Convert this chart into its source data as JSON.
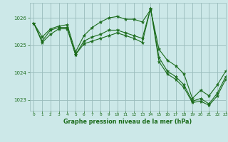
{
  "background_color": "#cce8e8",
  "grid_color": "#99bbbb",
  "line_color": "#1a6b1a",
  "marker_color": "#1a6b1a",
  "xlabel": "Graphe pression niveau de la mer (hPa)",
  "xlabel_color": "#1a6b1a",
  "tick_color": "#1a6b1a",
  "xlim": [
    -0.5,
    23
  ],
  "ylim": [
    1022.6,
    1026.55
  ],
  "yticks": [
    1023,
    1024,
    1025,
    1026
  ],
  "xticks": [
    0,
    1,
    2,
    3,
    4,
    5,
    6,
    7,
    8,
    9,
    10,
    11,
    12,
    13,
    14,
    15,
    16,
    17,
    18,
    19,
    20,
    21,
    22,
    23
  ],
  "series": [
    [
      1025.8,
      1025.3,
      1025.6,
      1025.7,
      1025.75,
      1024.75,
      1025.35,
      1025.65,
      1025.85,
      1026.0,
      1026.05,
      1025.95,
      1025.95,
      1025.85,
      1026.3,
      1024.85,
      1024.45,
      1024.25,
      1023.95,
      1023.05,
      1023.35,
      1023.15,
      1023.55,
      1024.05
    ],
    [
      1025.8,
      1025.15,
      1025.55,
      1025.65,
      1025.65,
      1024.65,
      1025.15,
      1025.3,
      1025.4,
      1025.55,
      1025.55,
      1025.45,
      1025.35,
      1025.25,
      1026.35,
      1024.55,
      1024.05,
      1023.85,
      1023.55,
      1022.95,
      1023.05,
      1022.85,
      1023.25,
      1023.85
    ],
    [
      1025.8,
      1025.1,
      1025.4,
      1025.6,
      1025.6,
      1024.65,
      1025.05,
      1025.15,
      1025.25,
      1025.35,
      1025.45,
      1025.35,
      1025.25,
      1025.1,
      1026.35,
      1024.4,
      1023.95,
      1023.75,
      1023.45,
      1022.9,
      1022.95,
      1022.8,
      1023.15,
      1023.75
    ]
  ]
}
